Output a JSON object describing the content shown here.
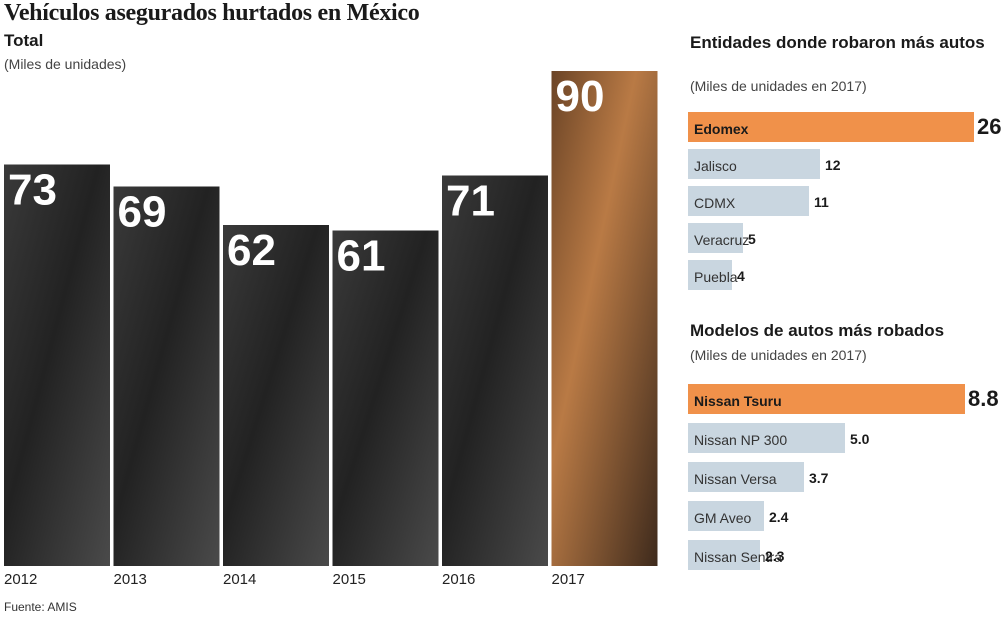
{
  "header": {
    "title": "Vehículos asegurados hurtados en México",
    "subtitle": "Total",
    "units": "(Miles de unidades)"
  },
  "source": "Fuente: AMIS",
  "colors": {
    "bar_dark": "#2b2b2b",
    "bar_highlight": "#8a5a32",
    "hbar_base": "#c9d6e0",
    "hbar_highlight": "#f0914a"
  },
  "chart_data": [
    {
      "type": "bar",
      "title": "Total",
      "subtitle": "(Miles de unidades)",
      "categories": [
        "2012",
        "2013",
        "2014",
        "2015",
        "2016",
        "2017"
      ],
      "values": [
        73,
        69,
        62,
        61,
        71,
        90
      ],
      "highlight_index": 5,
      "grid": false
    },
    {
      "type": "bar",
      "orientation": "horizontal",
      "title": "Entidades donde robaron más autos",
      "subtitle": "(Miles de unidades en 2017)",
      "categories": [
        "Edomex",
        "Jalisco",
        "CDMX",
        "Veracruz",
        "Puebla"
      ],
      "values": [
        26,
        12,
        11,
        5,
        4
      ],
      "value_labels": [
        "26",
        "12",
        "11",
        "5",
        "4"
      ],
      "highlight_index": 0
    },
    {
      "type": "bar",
      "orientation": "horizontal",
      "title": "Modelos de autos más robados",
      "subtitle": "(Miles de unidades en 2017)",
      "categories": [
        "Nissan Tsuru",
        "Nissan NP 300",
        "Nissan Versa",
        "GM Aveo",
        "Nissan Sentra"
      ],
      "values": [
        8.8,
        5.0,
        3.7,
        2.4,
        2.3
      ],
      "value_labels": [
        "8.8",
        "5.0",
        "3.7",
        "2.4",
        "2.3"
      ],
      "highlight_index": 0
    }
  ]
}
